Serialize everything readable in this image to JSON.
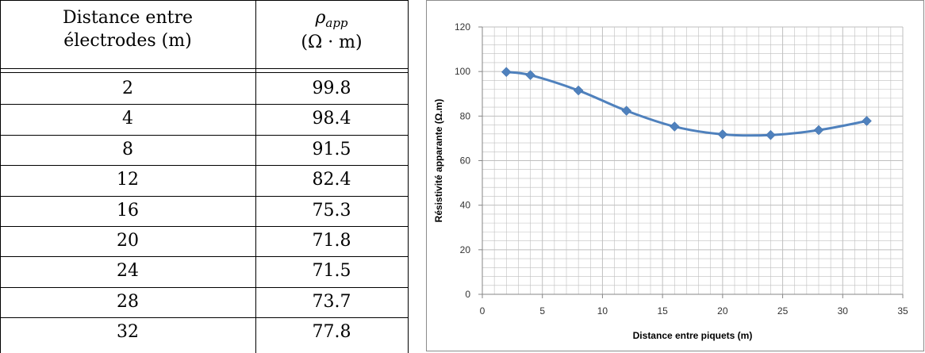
{
  "table": {
    "header": {
      "col1_line1": "Distance entre",
      "col1_line2": "électrodes (m)",
      "col2_symbol": "ρ",
      "col2_subscript": "app",
      "col2_unit": "(Ω · m)"
    },
    "rows": [
      {
        "distance": "2",
        "rho": "99.8"
      },
      {
        "distance": "4",
        "rho": "98.4"
      },
      {
        "distance": "8",
        "rho": "91.5"
      },
      {
        "distance": "12",
        "rho": "82.4"
      },
      {
        "distance": "16",
        "rho": "75.3"
      },
      {
        "distance": "20",
        "rho": "71.8"
      },
      {
        "distance": "24",
        "rho": "71.5"
      },
      {
        "distance": "28",
        "rho": "73.7"
      },
      {
        "distance": "32",
        "rho": "77.8"
      }
    ]
  },
  "chart_data": {
    "type": "line",
    "x": [
      2,
      4,
      8,
      12,
      16,
      20,
      24,
      28,
      32
    ],
    "series": [
      {
        "values": [
          99.8,
          98.4,
          91.5,
          82.4,
          75.3,
          71.8,
          71.5,
          73.7,
          77.8
        ]
      }
    ],
    "xlabel": "Distance entre piquets (m)",
    "ylabel": "Résistivité apparante (Ω.m)",
    "xlim": [
      0,
      35
    ],
    "ylim": [
      0,
      120
    ],
    "xticks": [
      "0",
      "5",
      "10",
      "15",
      "20",
      "25",
      "30",
      "35"
    ],
    "yticks": [
      "0",
      "20",
      "40",
      "60",
      "80",
      "100",
      "120"
    ],
    "grid": true,
    "smooth": true,
    "marker": "diamond",
    "colors": {
      "series": "#4f81bd",
      "grid": "#bfbfbf",
      "axis": "#868686"
    }
  }
}
